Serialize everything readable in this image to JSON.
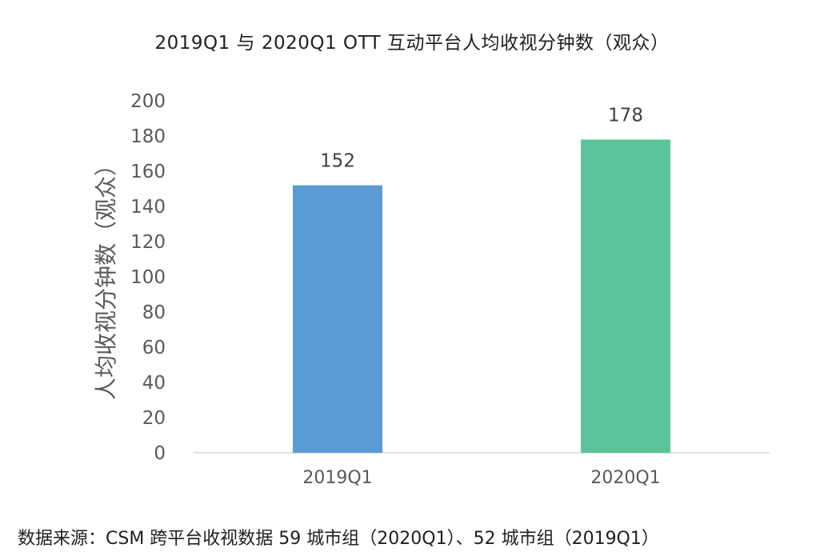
{
  "chart_data": {
    "type": "bar",
    "title": "2019Q1 与 2020Q1  OTT 互动平台人均收视分钟数（观众）",
    "xlabel": "",
    "ylabel": "人均收视分钟数（观众）",
    "categories": [
      "2019Q1",
      "2020Q1"
    ],
    "values": [
      152,
      178
    ],
    "data_labels": [
      "152",
      "178"
    ],
    "bar_colors": [
      "#5b9bd5",
      "#5cc49a"
    ],
    "ylim": [
      0,
      200
    ],
    "yticks": [
      0,
      20,
      40,
      60,
      80,
      100,
      120,
      140,
      160,
      180,
      200
    ],
    "grid": false,
    "legend": "none"
  },
  "source_note": "数据来源：CSM 跨平台收视数据 59 城市组（2020Q1）、52 城市组（2019Q1）"
}
